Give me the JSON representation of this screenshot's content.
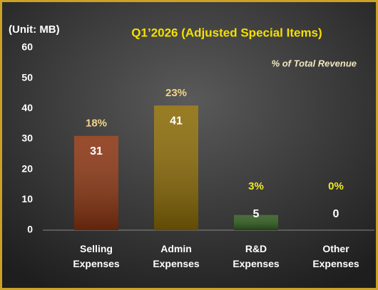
{
  "chart_data": {
    "type": "bar",
    "title": "Q1’2026 (Adjusted Special Items)",
    "unit_label": "(Unit: MB)",
    "annotation": "% of Total Revenue",
    "categories": [
      "Selling Expenses",
      "Admin Expenses",
      "R&D Expenses",
      "Other Expenses"
    ],
    "values": [
      31,
      41,
      5,
      0
    ],
    "colors": [
      "#8a3410",
      "#8a6a06",
      "#2f5a1c",
      "#555555"
    ],
    "percent_labels": [
      "18%",
      "23%",
      "3%",
      "0%"
    ],
    "percent_label_colors": [
      "#f2d58a",
      "#f2d58a",
      "#f0e82a",
      "#f0e82a"
    ],
    "ylim": [
      0,
      60
    ],
    "yticks": [
      0,
      10,
      20,
      30,
      40,
      50,
      60
    ],
    "grid": false
  }
}
